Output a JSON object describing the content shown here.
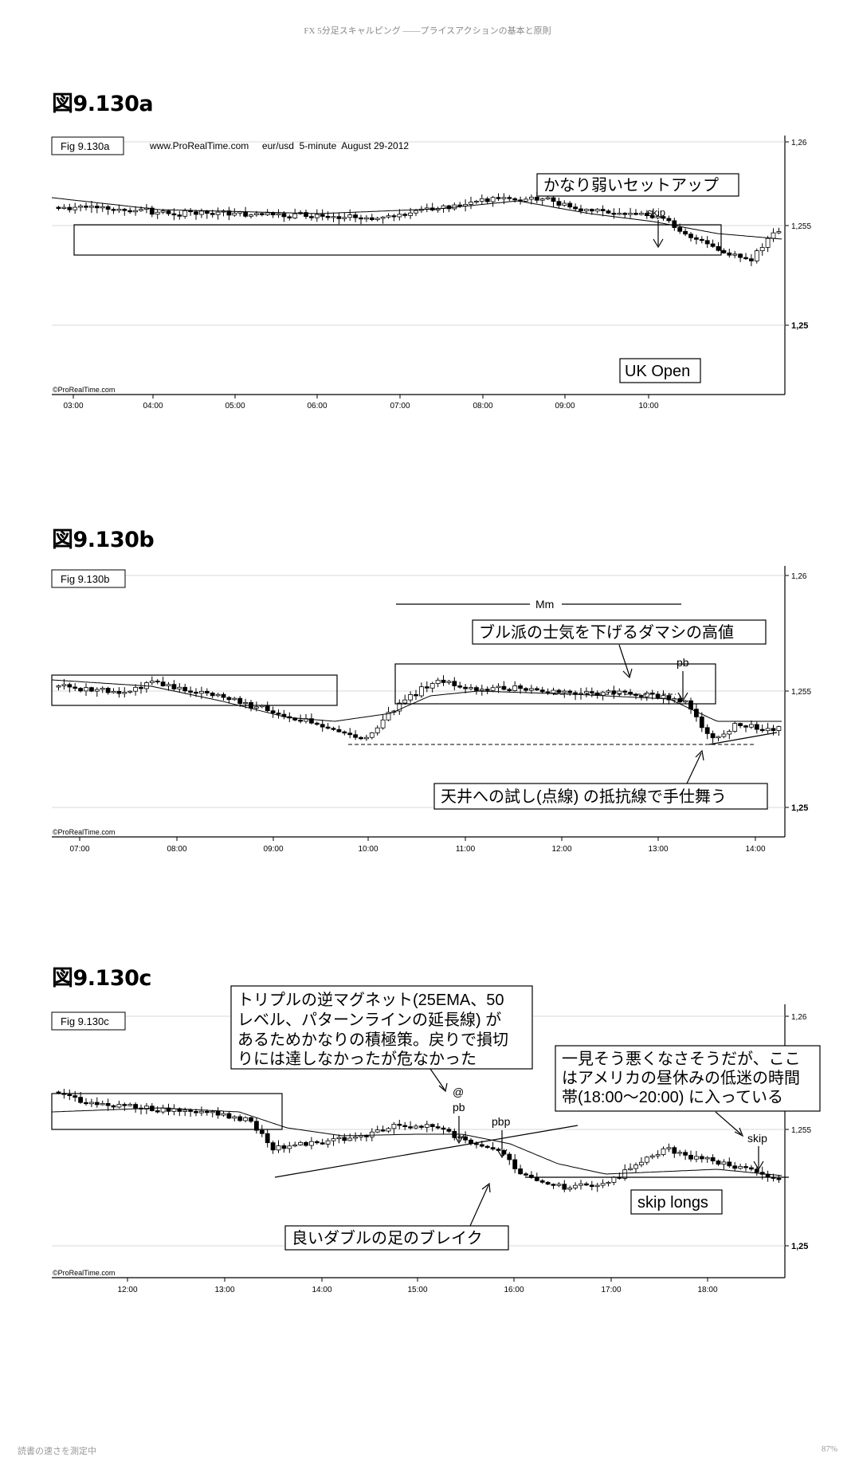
{
  "page_header": "FX 5分足スキャルピング ——プライスアクションの基本と原則",
  "footer": {
    "left": "読書の速さを測定中",
    "right": "87%"
  },
  "chart_data": [
    {
      "id": "a",
      "type": "candlestick",
      "heading": "図9.130a",
      "figlabel": "Fig 9.130a",
      "header_text": "www.ProRealTime.com     eur/usd  5-minute  August 29-2012",
      "watermark": "©ProRealTime.com",
      "y_ticks": [
        "1,26",
        "1,255",
        "1,25"
      ],
      "y_tick_values": [
        1.26,
        1.255,
        1.25
      ],
      "ylim": [
        1.2498,
        1.261
      ],
      "x_ticks": [
        "03:00",
        "04:00",
        "05:00",
        "06:00",
        "07:00",
        "08:00",
        "09:00",
        "10:00"
      ],
      "annotations": [
        {
          "text": "かなり弱いセットアップ"
        },
        {
          "text": "skip"
        },
        {
          "text": "UK Open"
        }
      ]
    },
    {
      "id": "b",
      "type": "candlestick",
      "heading": "図9.130b",
      "figlabel": "Fig 9.130b",
      "header_text": "",
      "watermark": "©ProRealTime.com",
      "y_ticks": [
        "1,26",
        "1,255",
        "1,25"
      ],
      "y_tick_values": [
        1.26,
        1.255,
        1.25
      ],
      "ylim": [
        1.2498,
        1.261
      ],
      "x_ticks": [
        "07:00",
        "08:00",
        "09:00",
        "10:00",
        "11:00",
        "12:00",
        "13:00",
        "14:00"
      ],
      "annotations": [
        {
          "text": "Mm"
        },
        {
          "text": "ブル派の士気を下げるダマシの高値"
        },
        {
          "text": "pb"
        },
        {
          "text": "天井への試し(点線) の抵抗線で手仕舞う"
        }
      ]
    },
    {
      "id": "c",
      "type": "candlestick",
      "heading": "図9.130c",
      "figlabel": "Fig 9.130c",
      "header_text": "",
      "watermark": "©ProRealTime.com",
      "y_ticks": [
        "1,26",
        "1,255",
        "1,25"
      ],
      "y_tick_values": [
        1.26,
        1.255,
        1.25
      ],
      "ylim": [
        1.2498,
        1.261
      ],
      "x_ticks": [
        "12:00",
        "13:00",
        "14:00",
        "15:00",
        "16:00",
        "17:00",
        "18:00"
      ],
      "annotations": [
        {
          "text": "トリプルの逆マグネット(25EMA、50"
        },
        {
          "text": "レベル、パターンラインの延長線) が"
        },
        {
          "text": "あるためかなりの積極策。戻りで損切"
        },
        {
          "text": "りには達しなかったが危なかった"
        },
        {
          "text": "一見そう悪くなさそうだが、ここ"
        },
        {
          "text": "はアメリカの昼休みの低迷の時間"
        },
        {
          "text": "帯(18:00～20:00) に入っている"
        },
        {
          "text": "@"
        },
        {
          "text": "pb"
        },
        {
          "text": "pbp"
        },
        {
          "text": "skip"
        },
        {
          "text": "skip longs"
        },
        {
          "text": "良いダブルの足のブレイク"
        }
      ]
    }
  ]
}
